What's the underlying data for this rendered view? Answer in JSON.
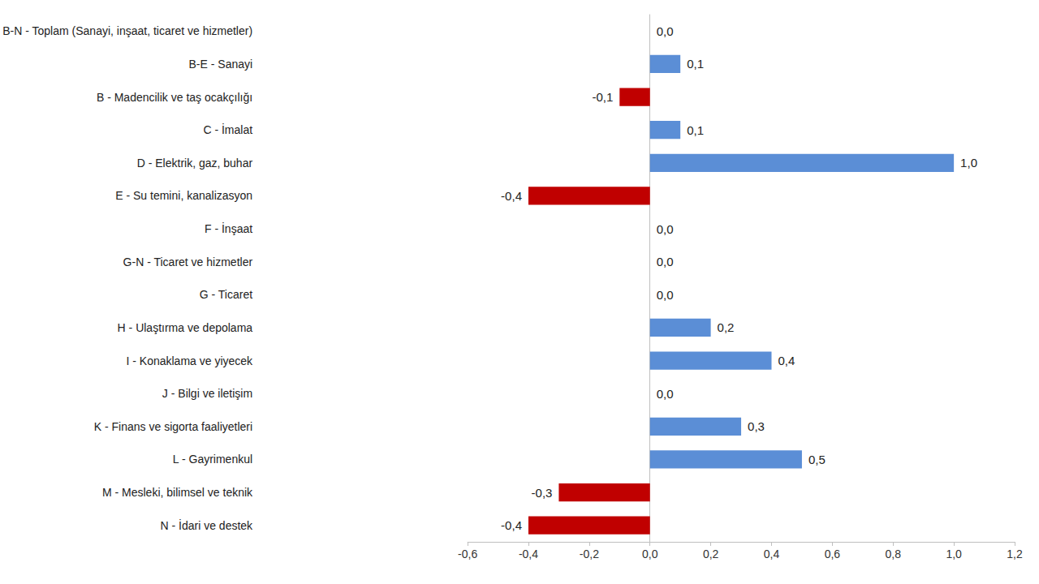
{
  "chart_data": {
    "type": "bar",
    "orientation": "horizontal",
    "categories": [
      "B-N - Toplam (Sanayi, inşaat, ticaret ve hizmetler)",
      "B-E - Sanayi",
      "B - Madencilik ve taş ocakçılığı",
      "C - İmalat",
      "D - Elektrik, gaz, buhar",
      "E - Su temini, kanalizasyon",
      "F - İnşaat",
      "G-N - Ticaret ve hizmetler",
      "G - Ticaret",
      "H - Ulaştırma ve depolama",
      "I - Konaklama ve yiyecek",
      "J - Bilgi ve iletişim",
      "K - Finans ve sigorta faaliyetleri",
      "L - Gayrimenkul",
      "M - Mesleki, bilimsel ve teknik",
      "N - İdari ve destek"
    ],
    "values": [
      0.0,
      0.1,
      -0.1,
      0.1,
      1.0,
      -0.4,
      0.0,
      0.0,
      0.0,
      0.2,
      0.4,
      0.0,
      0.3,
      0.5,
      -0.3,
      -0.4
    ],
    "value_labels": [
      "0,0",
      "0,1",
      "-0,1",
      "0,1",
      "1,0",
      "-0,4",
      "0,0",
      "0,0",
      "0,0",
      "0,2",
      "0,4",
      "0,0",
      "0,3",
      "0,5",
      "-0,3",
      "-0,4"
    ],
    "colors": [
      "#5b8ed6",
      "#5b8ed6",
      "#c00000",
      "#5b8ed6",
      "#5b8ed6",
      "#c00000",
      "#5b8ed6",
      "#5b8ed6",
      "#5b8ed6",
      "#5b8ed6",
      "#5b8ed6",
      "#5b8ed6",
      "#5b8ed6",
      "#5b8ed6",
      "#c00000",
      "#c00000"
    ],
    "xlim": [
      -0.6,
      1.2
    ],
    "xticks": [
      {
        "value": -0.6,
        "label": "-0,6"
      },
      {
        "value": -0.4,
        "label": "-0,4"
      },
      {
        "value": -0.2,
        "label": "-0,2"
      },
      {
        "value": 0.0,
        "label": "0,0"
      },
      {
        "value": 0.2,
        "label": "0,2"
      },
      {
        "value": 0.4,
        "label": "0,4"
      },
      {
        "value": 0.6,
        "label": "0,6"
      },
      {
        "value": 0.8,
        "label": "0,8"
      },
      {
        "value": 1.0,
        "label": "1,0"
      },
      {
        "value": 1.2,
        "label": "1,2"
      }
    ],
    "grid": false,
    "data_labels": true
  }
}
